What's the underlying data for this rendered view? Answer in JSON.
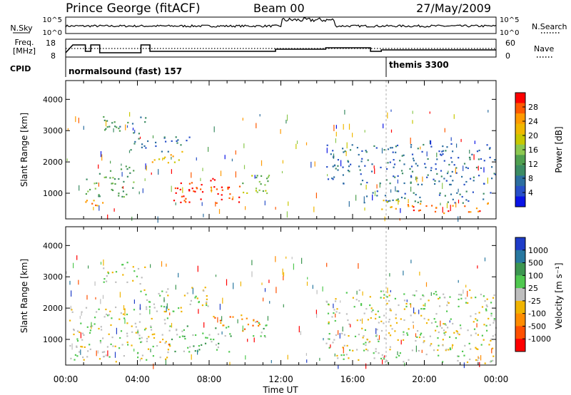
{
  "header": {
    "station": "Prince George (fitACF)",
    "beam": "Beam 00",
    "date": "27/May/2009"
  },
  "status_panels": {
    "nsky_label": "N.Sky",
    "nsearch_label": "N.Search",
    "noise_ticks": [
      "10^5",
      "10^0"
    ],
    "freq_label_1": "Freq.",
    "freq_label_2": "[MHz]",
    "freq_ticks": [
      "18",
      "8"
    ],
    "nave_label": "Nave",
    "nave_ticks": [
      "60",
      "0"
    ],
    "cpid_label": "CPID",
    "cpid_segments": [
      {
        "name": "normalsound (fast) 157",
        "start_hour": 0
      },
      {
        "name": "themis 3300",
        "start_hour": 18
      }
    ]
  },
  "power_colorbar": {
    "label": "Power [dB]",
    "ticks": [
      "28",
      "24",
      "20",
      "16",
      "12",
      "8",
      "4"
    ],
    "colors": [
      "#ff0000",
      "#ff5a00",
      "#ff9a00",
      "#f0b800",
      "#c8c800",
      "#8cc850",
      "#50a050",
      "#3c8c64",
      "#2c6ea0",
      "#2850c8",
      "#0a14e6"
    ]
  },
  "velocity_colorbar": {
    "label": "Velocity [m s⁻¹]",
    "ticks": [
      "1000",
      "500",
      "100",
      "25",
      "-25",
      "-100",
      "-500",
      "-1000"
    ],
    "colors": [
      "#1e3cc8",
      "#2878a0",
      "#3c9650",
      "#50c850",
      "#bebebe",
      "#f0b400",
      "#ff8c00",
      "#ff5000",
      "#ff0000"
    ]
  },
  "chart_data": {
    "type": "heatmap",
    "xlabel": "Time UT",
    "x_ticks": [
      "00:00",
      "04:00",
      "08:00",
      "12:00",
      "16:00",
      "20:00",
      "00:00"
    ],
    "xlim_hours": [
      0,
      24
    ],
    "ylabel": "Slant Range [km]",
    "y_ticks": [
      1000,
      2000,
      3000,
      4000
    ],
    "ylim_km": [
      180,
      4600
    ],
    "panels": [
      {
        "name": "Power",
        "blobs": [
          {
            "t0": 6.0,
            "t1": 9.8,
            "r0": 700,
            "r1": 1400,
            "level": 0
          },
          {
            "t0": 7.0,
            "t1": 8.4,
            "r0": 1050,
            "r1": 1550,
            "level": 1
          },
          {
            "t0": 9.8,
            "t1": 11.5,
            "r0": 850,
            "r1": 1700,
            "level": 5
          },
          {
            "t0": 1.0,
            "t1": 2.6,
            "r0": 600,
            "r1": 900,
            "level": 2
          },
          {
            "t0": 1.0,
            "t1": 3.8,
            "r0": 900,
            "r1": 1900,
            "level": 6
          },
          {
            "t0": 4.6,
            "t1": 6.6,
            "r0": 1950,
            "r1": 2350,
            "level": 3
          },
          {
            "t0": 3.6,
            "t1": 7.0,
            "r0": 2350,
            "r1": 2850,
            "level": 8
          },
          {
            "t0": 2.0,
            "t1": 4.5,
            "r0": 2900,
            "r1": 3500,
            "level": 7
          },
          {
            "t0": 14.5,
            "t1": 24.0,
            "r0": 1300,
            "r1": 2600,
            "level": 8
          },
          {
            "t0": 16.5,
            "t1": 23.8,
            "r0": 700,
            "r1": 1100,
            "level": 8
          },
          {
            "t0": 19.0,
            "t1": 23.7,
            "r0": 380,
            "r1": 720,
            "level": 1
          },
          {
            "t0": 17.0,
            "t1": 19.2,
            "r0": 500,
            "r1": 800,
            "level": 3
          }
        ]
      },
      {
        "name": "Velocity",
        "blobs": [
          {
            "t0": 5.5,
            "t1": 9.2,
            "r0": 600,
            "r1": 1450,
            "level": 3
          },
          {
            "t0": 8.2,
            "t1": 10.8,
            "r0": 1250,
            "r1": 1800,
            "level": 6
          },
          {
            "t0": 10.0,
            "t1": 11.3,
            "r0": 1050,
            "r1": 1600,
            "level": 3
          },
          {
            "t0": 0.2,
            "t1": 5.8,
            "r0": 300,
            "r1": 2100,
            "level": 4
          },
          {
            "t0": 4.0,
            "t1": 8.0,
            "r0": 1900,
            "r1": 2700,
            "level": 4
          },
          {
            "t0": 2.0,
            "t1": 4.4,
            "r0": 2800,
            "r1": 3500,
            "level": 4
          },
          {
            "t0": 14.5,
            "t1": 24.0,
            "r0": 250,
            "r1": 2600,
            "level": 4
          },
          {
            "t0": 5.0,
            "t1": 6.0,
            "r0": 850,
            "r1": 1050,
            "level": 6
          }
        ]
      }
    ]
  }
}
